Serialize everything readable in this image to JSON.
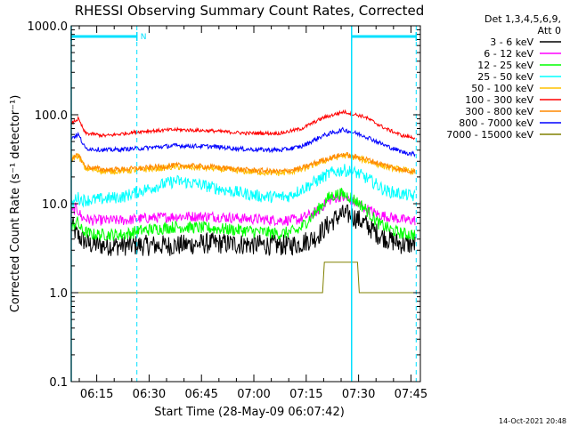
{
  "chart_data": {
    "type": "line",
    "title": "RHESSI Observing Summary Count Rates, Corrected",
    "xlabel": "Start Time (28-May-09 06:07:42)",
    "ylabel": "Corrected Count Rate (s⁻¹ detector⁻¹)",
    "yscale": "log",
    "ylim": [
      0.1,
      1000
    ],
    "xlim_minutes": [
      0,
      100
    ],
    "x_ticks": [
      {
        "label": "06:15",
        "minutes": 7.3
      },
      {
        "label": "06:30",
        "minutes": 22.3
      },
      {
        "label": "06:45",
        "minutes": 37.3
      },
      {
        "label": "07:00",
        "minutes": 52.3
      },
      {
        "label": "07:15",
        "minutes": 67.3
      },
      {
        "label": "07:30",
        "minutes": 82.3
      },
      {
        "label": "07:45",
        "minutes": 97.3
      }
    ],
    "y_ticks": [
      {
        "label": "0.1",
        "value": 0.1
      },
      {
        "label": "1.0",
        "value": 1
      },
      {
        "label": "10.0",
        "value": 10
      },
      {
        "label": "100.0",
        "value": 100
      },
      {
        "label": "1000.0",
        "value": 1000
      }
    ],
    "legend_header": [
      "Det 1,3,4,5,6,9,",
      "Att 0"
    ],
    "legend_position": "right",
    "night_bars": [
      {
        "from": 0,
        "to": 18.8,
        "label": "N"
      },
      {
        "from": 80.3,
        "to": 98.8,
        "label": ""
      }
    ],
    "vlines_solid": [
      0,
      80.3
    ],
    "vlines_dashed": [
      18.8,
      98.8
    ],
    "footer": "14-Oct-2021 20:48",
    "series": [
      {
        "name": "3 - 6 keV",
        "color": "#000000",
        "x": [
          0,
          1.5,
          3,
          5,
          10,
          20,
          30,
          40,
          50,
          60,
          65,
          70,
          74,
          77,
          80,
          84,
          88,
          92,
          95,
          98.5
        ],
        "y": [
          6,
          4.5,
          4,
          3.5,
          3.4,
          3.4,
          3.4,
          3.6,
          3.5,
          3.4,
          3.5,
          4.2,
          6,
          7.5,
          7.5,
          6,
          4.5,
          3.8,
          3.5,
          3.5
        ],
        "noise": 0.12
      },
      {
        "name": "6 - 12 keV",
        "color": "#ff00ff",
        "x": [
          0,
          1.5,
          3,
          6,
          15,
          20,
          30,
          40,
          50,
          60,
          65,
          70,
          74,
          77,
          80,
          84,
          88,
          92,
          95,
          98.5
        ],
        "y": [
          8,
          9,
          7,
          6.5,
          6.5,
          6.8,
          7.2,
          7.2,
          6.8,
          6.5,
          6.6,
          8,
          11,
          12,
          11,
          9,
          7.5,
          7,
          6.6,
          6.5
        ],
        "noise": 0.06
      },
      {
        "name": "12 - 25 keV",
        "color": "#00ff00",
        "x": [
          0,
          1.5,
          3,
          6,
          15,
          20,
          30,
          40,
          50,
          60,
          65,
          70,
          74,
          77,
          80,
          84,
          88,
          92,
          95,
          98.5
        ],
        "y": [
          5,
          6.5,
          5,
          4.5,
          4.5,
          5,
          5.5,
          5.3,
          5,
          4.6,
          5,
          8,
          12,
          13,
          12,
          9,
          6,
          5,
          4.6,
          4.5
        ],
        "noise": 0.07
      },
      {
        "name": "25 - 50 keV",
        "color": "#00ffff",
        "x": [
          0,
          1.5,
          3,
          6,
          15,
          20,
          25,
          30,
          35,
          45,
          55,
          62,
          68,
          74,
          78,
          82,
          86,
          90,
          94,
          98.5
        ],
        "y": [
          9,
          12,
          11,
          11,
          12,
          14,
          16,
          18,
          17,
          14,
          12,
          12,
          16,
          22,
          24,
          22,
          18,
          14,
          13,
          12
        ],
        "noise": 0.07
      },
      {
        "name": "50 - 100 keV",
        "color": "#ffc000",
        "x": [
          0,
          2,
          4,
          10,
          20,
          30,
          40,
          50,
          60,
          66,
          72,
          78,
          84,
          90,
          95,
          98.5
        ],
        "y": [
          32,
          35,
          25,
          23,
          24,
          26,
          25,
          23,
          22,
          24,
          30,
          35,
          31,
          26,
          24,
          23
        ],
        "noise": 0.035
      },
      {
        "name": "100 - 300 keV",
        "color": "#ff0000",
        "x": [
          0,
          2,
          4,
          10,
          20,
          30,
          40,
          50,
          60,
          66,
          72,
          78,
          84,
          90,
          95,
          98.5
        ],
        "y": [
          80,
          90,
          62,
          58,
          65,
          68,
          66,
          62,
          62,
          70,
          92,
          108,
          95,
          70,
          58,
          55
        ],
        "noise": 0.02
      },
      {
        "name": "300 - 800 keV",
        "color": "#ff8800",
        "x": [
          0,
          2,
          4,
          10,
          20,
          30,
          40,
          50,
          60,
          66,
          72,
          78,
          84,
          90,
          95,
          98.5
        ],
        "y": [
          30,
          36,
          26,
          24,
          25,
          27,
          26,
          24,
          23,
          25,
          31,
          36,
          32,
          27,
          24,
          23
        ],
        "noise": 0.03
      },
      {
        "name": "800 - 7000 keV",
        "color": "#0000ff",
        "x": [
          0,
          2,
          4,
          10,
          20,
          30,
          40,
          50,
          60,
          66,
          72,
          78,
          84,
          90,
          95,
          98.5
        ],
        "y": [
          55,
          60,
          42,
          40,
          42,
          45,
          44,
          41,
          40,
          44,
          58,
          68,
          58,
          45,
          38,
          36
        ],
        "noise": 0.025
      },
      {
        "name": "7000 - 15000 keV",
        "color": "#808000",
        "x": [
          0,
          3,
          30,
          60,
          65,
          70,
          72,
          72.5,
          82,
          82.5,
          85,
          98.5
        ],
        "y": [
          1,
          1,
          1,
          1,
          1,
          1,
          1,
          2.2,
          2.2,
          1,
          1,
          1
        ],
        "noise": 0
      }
    ]
  }
}
